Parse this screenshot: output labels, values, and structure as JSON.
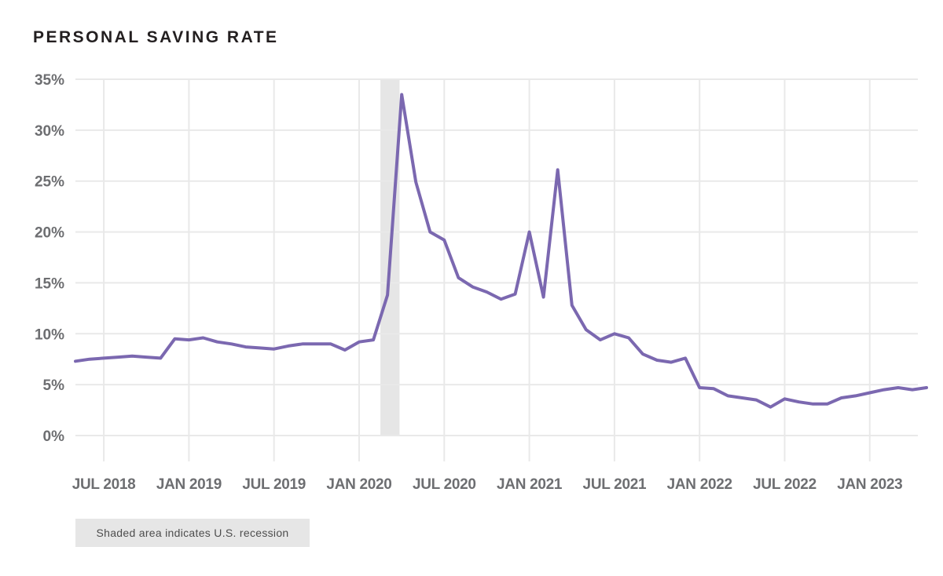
{
  "title": "PERSONAL SAVING RATE",
  "note": "Shaded area indicates U.S. recession",
  "colors": {
    "line": "#7b68b0",
    "recession": "#e6e6e6",
    "grid": "#e9e9e9",
    "axis_text": "#6d6e71"
  },
  "chart_data": {
    "type": "line",
    "title": "PERSONAL SAVING RATE",
    "xlabel": "",
    "ylabel": "",
    "y_ticks": [
      0,
      5,
      10,
      15,
      20,
      25,
      30,
      35
    ],
    "y_tick_labels": [
      "0%",
      "5%",
      "10%",
      "15%",
      "20%",
      "25%",
      "30%",
      "35%"
    ],
    "ylim": [
      0,
      35
    ],
    "x_tick_labels": [
      "JUL 2018",
      "JAN 2019",
      "JUL 2019",
      "JAN 2020",
      "JUL 2020",
      "JAN 2021",
      "JUL 2021",
      "JAN 2022",
      "JUL 2022",
      "JAN 2023"
    ],
    "grid": true,
    "recession": {
      "start": "2020-02",
      "end": "2020-04"
    },
    "series": [
      {
        "x": [
          "2018-05",
          "2018-06",
          "2018-07",
          "2018-08",
          "2018-09",
          "2018-10",
          "2018-11",
          "2018-12",
          "2019-01",
          "2019-02",
          "2019-03",
          "2019-04",
          "2019-05",
          "2019-06",
          "2019-07",
          "2019-08",
          "2019-09",
          "2019-10",
          "2019-11",
          "2019-12",
          "2020-01",
          "2020-02",
          "2020-03",
          "2020-04",
          "2020-05",
          "2020-06",
          "2020-07",
          "2020-08",
          "2020-09",
          "2020-10",
          "2020-11",
          "2020-12",
          "2021-01",
          "2021-02",
          "2021-03",
          "2021-04",
          "2021-05",
          "2021-06",
          "2021-07",
          "2021-08",
          "2021-09",
          "2021-10",
          "2021-11",
          "2021-12",
          "2022-01",
          "2022-02",
          "2022-03",
          "2022-04",
          "2022-05",
          "2022-06",
          "2022-07",
          "2022-08",
          "2022-09",
          "2022-10",
          "2022-11",
          "2022-12",
          "2023-01",
          "2023-02",
          "2023-03",
          "2023-04",
          "2023-05"
        ],
        "values": [
          7.3,
          7.5,
          7.6,
          7.7,
          7.8,
          7.7,
          7.6,
          9.5,
          9.4,
          9.6,
          9.2,
          9.0,
          8.7,
          8.6,
          8.5,
          8.8,
          9.0,
          9.0,
          9.0,
          8.4,
          9.2,
          9.4,
          13.8,
          33.5,
          24.9,
          20.0,
          19.2,
          15.5,
          14.6,
          14.1,
          13.4,
          13.9,
          20.0,
          13.6,
          26.1,
          12.8,
          10.4,
          9.4,
          10.0,
          9.6,
          8.0,
          7.4,
          7.2,
          7.6,
          4.7,
          4.6,
          3.9,
          3.7,
          3.5,
          2.8,
          3.6,
          3.3,
          3.1,
          3.1,
          3.7,
          3.9,
          4.2,
          4.5,
          4.7,
          4.5,
          4.7
        ]
      }
    ]
  }
}
